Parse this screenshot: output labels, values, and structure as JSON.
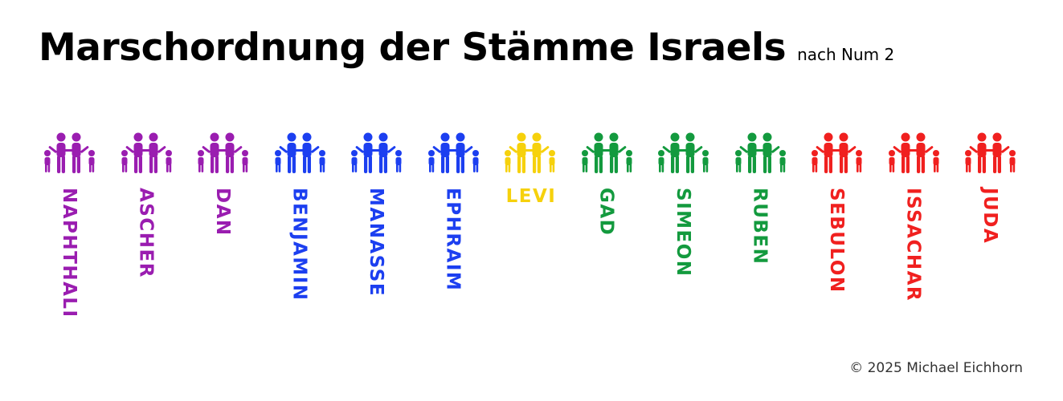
{
  "header": {
    "title": "Marschordnung der Stämme Israels",
    "subtitle": "nach Num 2"
  },
  "tribes": [
    {
      "name": "NAPHTHALI",
      "color": "#9a1db0",
      "orientation": "vertical",
      "icon": "family-icon"
    },
    {
      "name": "ASCHER",
      "color": "#9a1db0",
      "orientation": "vertical",
      "icon": "family-icon"
    },
    {
      "name": "DAN",
      "color": "#9a1db0",
      "orientation": "vertical",
      "icon": "family-icon"
    },
    {
      "name": "BENJAMIN",
      "color": "#1c3ff0",
      "orientation": "vertical",
      "icon": "family-icon"
    },
    {
      "name": "MANASSE",
      "color": "#1c3ff0",
      "orientation": "vertical",
      "icon": "family-icon"
    },
    {
      "name": "EPHRAIM",
      "color": "#1c3ff0",
      "orientation": "vertical",
      "icon": "family-icon"
    },
    {
      "name": "LEVI",
      "color": "#f6d10c",
      "orientation": "horizontal",
      "icon": "family-icon"
    },
    {
      "name": "GAD",
      "color": "#139a3e",
      "orientation": "vertical",
      "icon": "family-icon"
    },
    {
      "name": "SIMEON",
      "color": "#139a3e",
      "orientation": "vertical",
      "icon": "family-icon"
    },
    {
      "name": "RUBEN",
      "color": "#139a3e",
      "orientation": "vertical",
      "icon": "family-icon"
    },
    {
      "name": "SEBULON",
      "color": "#f0201f",
      "orientation": "vertical",
      "icon": "family-icon"
    },
    {
      "name": "ISSACHAR",
      "color": "#f0201f",
      "orientation": "vertical",
      "icon": "family-icon"
    },
    {
      "name": "JUDA",
      "color": "#f0201f",
      "orientation": "vertical",
      "icon": "family-icon"
    }
  ],
  "footer": {
    "copyright": "© 2025 Michael Eichhorn"
  }
}
